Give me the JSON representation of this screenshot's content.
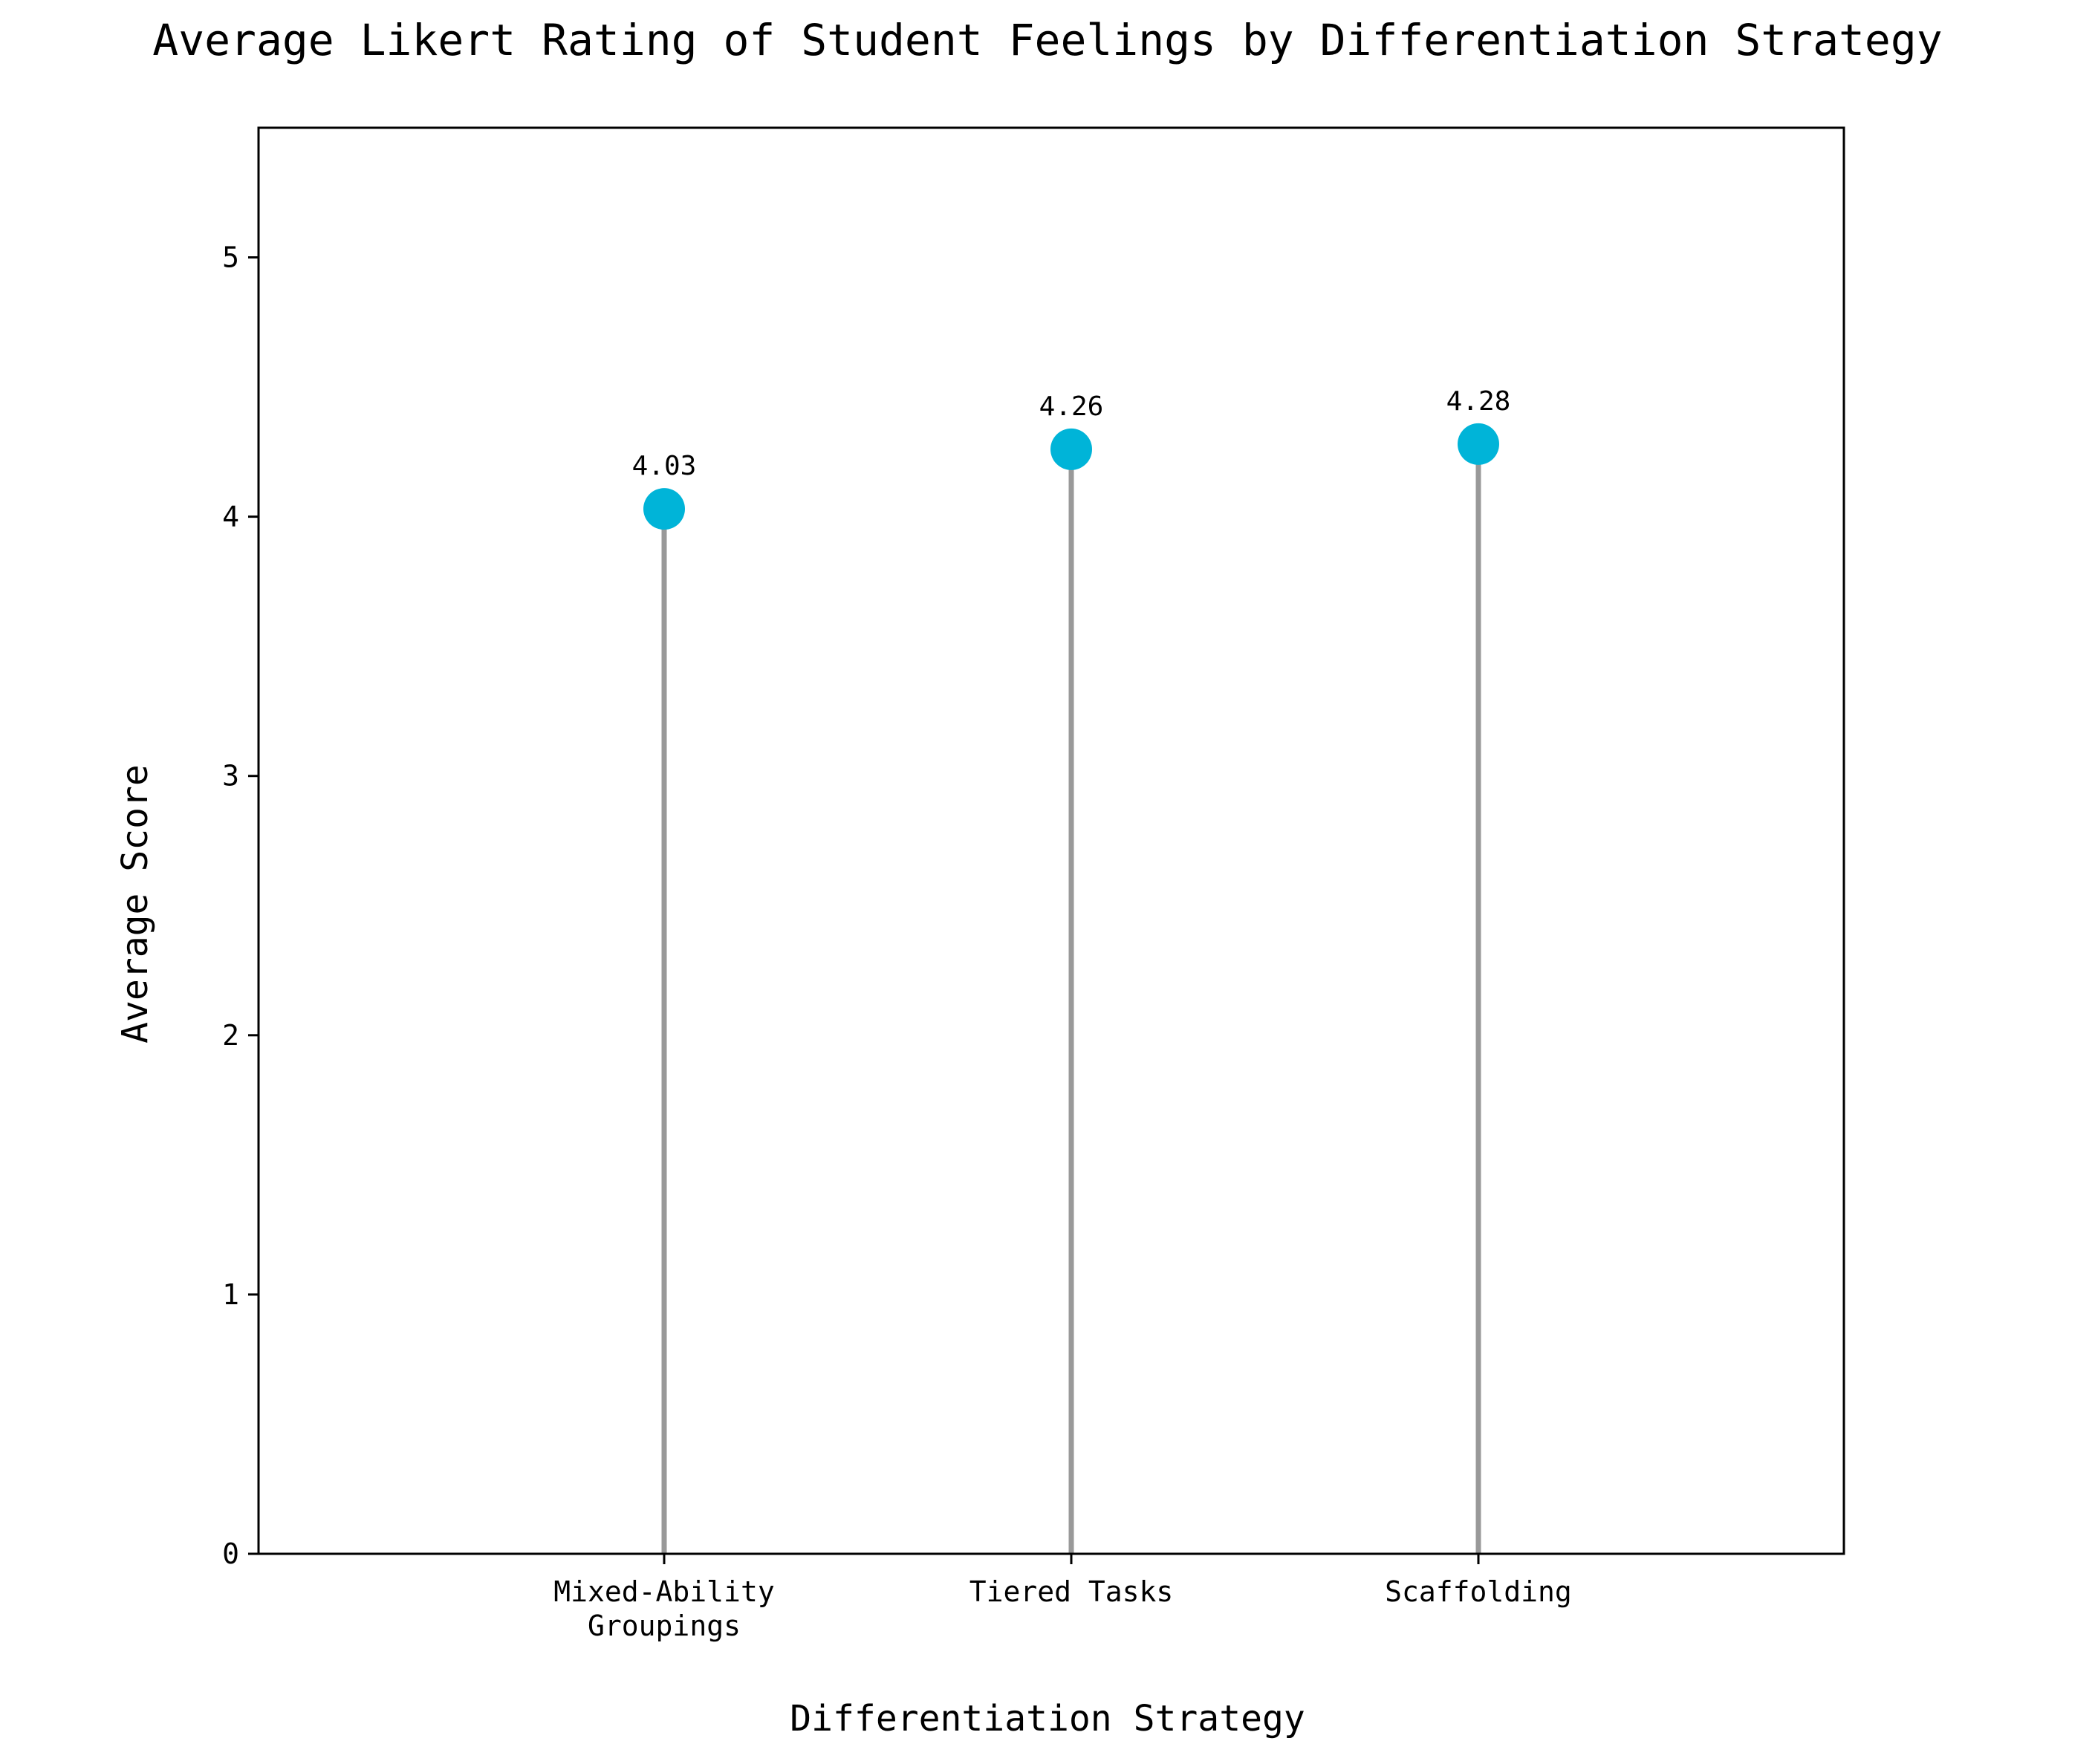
{
  "chart_data": {
    "type": "lollipop",
    "title": "Average Likert Rating of Student Feelings by Differentiation Strategy",
    "xlabel": "Differentiation Strategy",
    "ylabel": "Average Score",
    "categories": [
      [
        "Mixed-Ability",
        "Groupings"
      ],
      [
        "Tiered Tasks"
      ],
      [
        "Scaffolding"
      ]
    ],
    "values": [
      4.03,
      4.26,
      4.28
    ],
    "data_labels": [
      "4.03",
      "4.26",
      "4.28"
    ],
    "ylim": [
      0,
      5.5
    ],
    "yticks": [
      0,
      1,
      2,
      3,
      4,
      5
    ],
    "ytick_labels": [
      "0",
      "1",
      "2",
      "3",
      "4",
      "5"
    ],
    "grid": false,
    "legend": "none",
    "colors": {
      "marker": "#00b4d8",
      "stem": "#999999",
      "axes": "#000000"
    }
  }
}
